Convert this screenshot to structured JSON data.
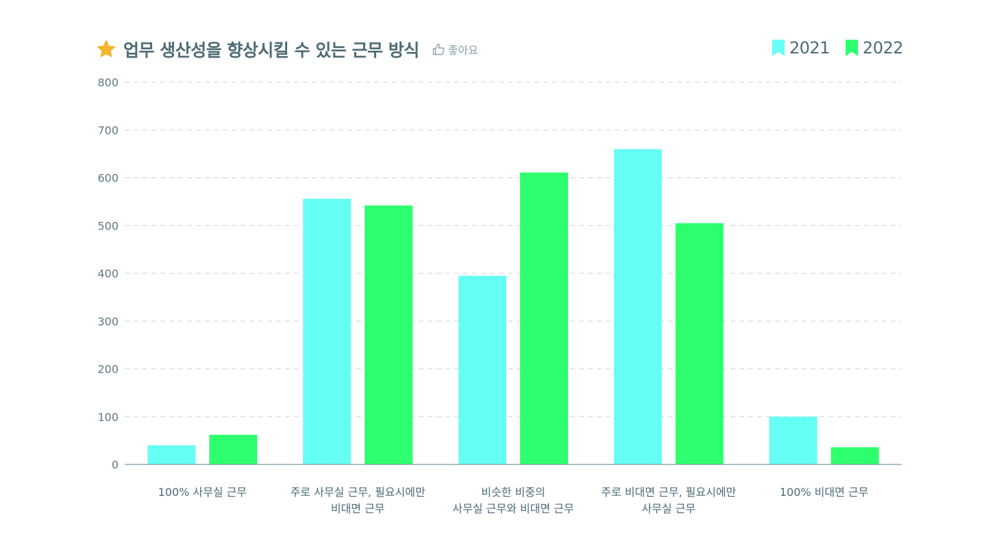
{
  "header": {
    "title": "업무 생산성을 향상시킬 수 있는 근무 방식",
    "icon": "star-icon",
    "like_label": "좋아요"
  },
  "legend": [
    {
      "label": "2021",
      "color": "#66fff5",
      "icon": "bookmark-icon"
    },
    {
      "label": "2022",
      "color": "#2dff6e",
      "icon": "bookmark-icon"
    }
  ],
  "chart_data": {
    "type": "bar",
    "title": "업무 생산성을 향상시킬 수 있는 근무 방식",
    "xlabel": "",
    "ylabel": "",
    "ylim": [
      0,
      800
    ],
    "yticks": [
      0,
      100,
      200,
      300,
      400,
      500,
      600,
      700,
      800
    ],
    "grid": true,
    "legend_position": "top-right",
    "categories": [
      [
        "100% 사무실 근무"
      ],
      [
        "주로 사무실 근무, 필요시에만",
        "비대면 근무"
      ],
      [
        "비슷한 비중의",
        "사무실 근무와 비대면 근무"
      ],
      [
        "주로 비대면 근무, 필요시에만",
        "사무실 근무"
      ],
      [
        "100% 비대면 근무"
      ]
    ],
    "series": [
      {
        "name": "2021",
        "color": "#66fff5",
        "values": [
          40,
          556,
          395,
          660,
          100
        ]
      },
      {
        "name": "2022",
        "color": "#2dff6e",
        "values": [
          62,
          542,
          611,
          505,
          36
        ]
      }
    ]
  }
}
